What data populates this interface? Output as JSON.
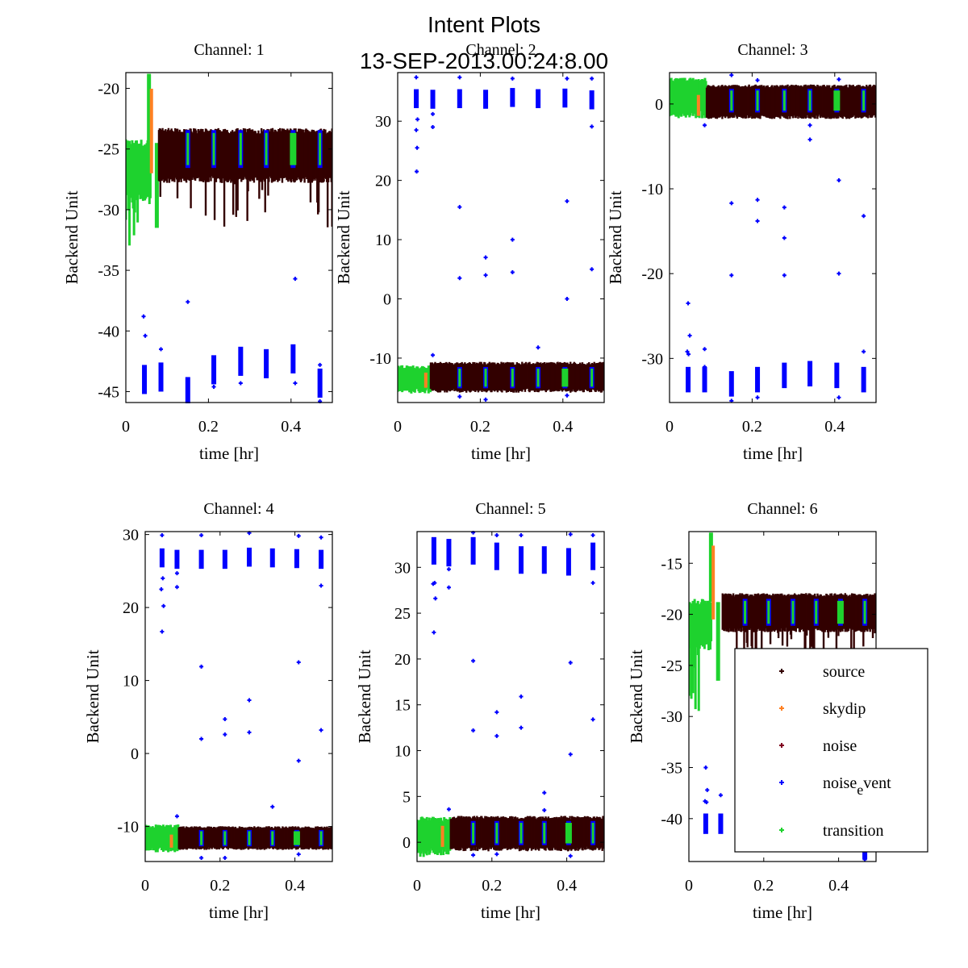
{
  "figure": {
    "title": "Intent Plots",
    "subtitle": "13-SEP-2013.00:24:8.00"
  },
  "chart_data": {
    "type": "scatter",
    "title": "Intent Plots",
    "subtitle": "13-SEP-2013.00:24:8.00",
    "legend": {
      "placement": "bottom-right (inside Channel 6)",
      "entries": [
        {
          "key": "source",
          "label": "source",
          "color": "#330000"
        },
        {
          "key": "skydip",
          "label": "skydip",
          "color": "#ff8022"
        },
        {
          "key": "noise",
          "label": "noise",
          "color": "#800020"
        },
        {
          "key": "noise_event",
          "label": "noise",
          "sub": "e",
          "sup": "vent",
          "color": "#0000ff"
        },
        {
          "key": "transition",
          "label": "transition",
          "color": "#1ed22e"
        }
      ]
    },
    "grid": false,
    "event_times_hr": [
      0.045,
      0.085,
      0.15,
      0.213,
      0.278,
      0.34,
      0.405,
      0.47
    ],
    "panels": [
      {
        "title": "Channel: 1",
        "xlabel": "time [hr]",
        "ylabel": "Backend Unit",
        "xlim": [
          0,
          0.5
        ],
        "ylim": [
          -45.9,
          -18.7
        ],
        "xticks": [
          0,
          0.2,
          0.4
        ],
        "xtick_labels": [
          "0",
          "0.2",
          "0.4"
        ],
        "yticks": [
          -45,
          -40,
          -35,
          -30,
          -25,
          -20
        ],
        "ytick_labels": [
          "-45",
          "-40",
          "-35",
          "-30",
          "-25",
          "-20"
        ],
        "source_band": {
          "x_range": [
            0.08,
            0.5
          ],
          "upper": -23.6,
          "lower": -27.5,
          "dip_depth": -31.5
        },
        "transition_band": {
          "x_range": [
            0.0,
            0.06
          ],
          "upper": -24.5,
          "lower": -29.0,
          "min": -34.0
        },
        "skydip_peak": {
          "x": 0.062,
          "y_top": -18.8,
          "y_bottom": -27.0
        },
        "noise_event_level": -43.5,
        "noise_event_centers": [
          -44.0,
          -43.8,
          -45.0,
          -43.2,
          -42.5,
          -42.7,
          -42.3,
          -44.3
        ],
        "noise_event_spread": 1.2,
        "event_in_source_level": -25.0,
        "outliers": [
          [
            0.043,
            -38.8
          ],
          [
            0.047,
            -40.4
          ],
          [
            0.085,
            -41.5
          ],
          [
            0.15,
            -37.6
          ],
          [
            0.41,
            -35.7
          ],
          [
            0.213,
            -44.6
          ],
          [
            0.278,
            -44.3
          ],
          [
            0.41,
            -44.3
          ],
          [
            0.47,
            -42.8
          ],
          [
            0.15,
            -46.0
          ],
          [
            0.47,
            -45.8
          ]
        ]
      },
      {
        "title": "Channel: 2",
        "xlabel": "time [hr]",
        "ylabel": "Backend Unit",
        "xlim": [
          0,
          0.5
        ],
        "ylim": [
          -17.5,
          38.2
        ],
        "xticks": [
          0,
          0.2,
          0.4
        ],
        "xtick_labels": [
          "0",
          "0.2",
          "0.4"
        ],
        "yticks": [
          -10,
          0,
          10,
          20,
          30
        ],
        "ytick_labels": [
          "-10",
          "0",
          "10",
          "20",
          "30"
        ],
        "source_band": {
          "x_range": [
            0.08,
            0.5
          ],
          "upper": -11.0,
          "lower": -15.5,
          "dip_depth": -15.5
        },
        "transition_band": {
          "x_range": [
            0.0,
            0.08
          ],
          "upper": -11.5,
          "lower": -15.5,
          "min": -15.5
        },
        "skydip_peak": {
          "x": 0.068,
          "y_top": -12.0,
          "y_bottom": -15.0
        },
        "noise_event_level": 33.8,
        "noise_event_centers": [
          33.8,
          33.7,
          33.8,
          33.7,
          34.0,
          33.8,
          33.9,
          33.6
        ],
        "noise_event_spread": 1.6,
        "event_in_source_level": -13.3,
        "outliers": [
          [
            0.046,
            21.5
          ],
          [
            0.047,
            25.5
          ],
          [
            0.045,
            28.5
          ],
          [
            0.048,
            30.3
          ],
          [
            0.085,
            29.0
          ],
          [
            0.085,
            31.2
          ],
          [
            0.15,
            15.5
          ],
          [
            0.213,
            7.0
          ],
          [
            0.213,
            4.0
          ],
          [
            0.15,
            3.5
          ],
          [
            0.278,
            10.0
          ],
          [
            0.278,
            4.5
          ],
          [
            0.41,
            16.5
          ],
          [
            0.41,
            0.0
          ],
          [
            0.34,
            -8.2
          ],
          [
            0.47,
            5.0
          ],
          [
            0.47,
            29.1
          ],
          [
            0.085,
            -9.5
          ],
          [
            0.15,
            -16.5
          ],
          [
            0.213,
            -17.0
          ],
          [
            0.41,
            -16.3
          ],
          [
            0.045,
            37.4
          ],
          [
            0.15,
            37.4
          ],
          [
            0.278,
            37.2
          ],
          [
            0.41,
            37.2
          ],
          [
            0.47,
            37.2
          ]
        ]
      },
      {
        "title": "Channel: 3",
        "xlabel": "time [hr]",
        "ylabel": "Backend Unit",
        "xlim": [
          0,
          0.5
        ],
        "ylim": [
          -35.2,
          3.7
        ],
        "xticks": [
          0,
          0.2,
          0.4
        ],
        "xtick_labels": [
          "0",
          "0.2",
          "0.4"
        ],
        "yticks": [
          -30,
          -20,
          -10,
          0
        ],
        "ytick_labels": [
          "-30",
          "-20",
          "-10",
          "0"
        ],
        "source_band": {
          "x_range": [
            0.09,
            0.5
          ],
          "upper": 2.0,
          "lower": -1.5,
          "dip_depth": -1.8
        },
        "transition_band": {
          "x_range": [
            0.0,
            0.09
          ],
          "upper": 2.8,
          "lower": -1.2,
          "min": -1.5
        },
        "skydip_peak": {
          "x": 0.07,
          "y_top": 1.5,
          "y_bottom": -1.4
        },
        "noise_event_level": -32.5,
        "noise_event_centers": [
          -32.5,
          -32.5,
          -33.0,
          -32.5,
          -32.0,
          -31.8,
          -32.0,
          -32.5
        ],
        "noise_event_spread": 1.5,
        "event_in_source_level": 0.4,
        "outliers": [
          [
            0.045,
            -23.5
          ],
          [
            0.049,
            -27.3
          ],
          [
            0.043,
            -29.2
          ],
          [
            0.046,
            -29.5
          ],
          [
            0.085,
            -28.9
          ],
          [
            0.085,
            -31.0
          ],
          [
            0.15,
            -11.7
          ],
          [
            0.213,
            -11.3
          ],
          [
            0.213,
            -13.8
          ],
          [
            0.278,
            -12.2
          ],
          [
            0.278,
            -15.8
          ],
          [
            0.278,
            -20.2
          ],
          [
            0.15,
            -20.2
          ],
          [
            0.34,
            -2.5
          ],
          [
            0.34,
            -4.2
          ],
          [
            0.41,
            -9.0
          ],
          [
            0.47,
            -13.2
          ],
          [
            0.41,
            -20.0
          ],
          [
            0.47,
            -29.2
          ],
          [
            0.085,
            -2.5
          ],
          [
            0.15,
            3.4
          ],
          [
            0.213,
            2.8
          ],
          [
            0.41,
            2.9
          ],
          [
            0.15,
            -35.0
          ],
          [
            0.213,
            -34.6
          ],
          [
            0.41,
            -34.6
          ]
        ]
      },
      {
        "title": "Channel: 4",
        "xlabel": "time [hr]",
        "ylabel": "Backend Unit",
        "xlim": [
          0,
          0.5
        ],
        "ylim": [
          -14.8,
          30.4
        ],
        "xticks": [
          0,
          0.2,
          0.4
        ],
        "xtick_labels": [
          "0",
          "0.2",
          "0.4"
        ],
        "yticks": [
          -10,
          0,
          10,
          20,
          30
        ],
        "ytick_labels": [
          "-10",
          "0",
          "10",
          "20",
          "30"
        ],
        "source_band": {
          "x_range": [
            0.09,
            0.5
          ],
          "upper": -10.2,
          "lower": -13.0,
          "dip_depth": -13.2
        },
        "transition_band": {
          "x_range": [
            0.0,
            0.09
          ],
          "upper": -10.0,
          "lower": -13.2,
          "min": -13.3
        },
        "skydip_peak": {
          "x": 0.07,
          "y_top": -10.8,
          "y_bottom": -12.9
        },
        "noise_event_level": 26.8,
        "noise_event_centers": [
          26.8,
          26.6,
          26.6,
          26.6,
          26.9,
          26.8,
          26.7,
          26.6
        ],
        "noise_event_spread": 1.3,
        "event_in_source_level": -11.6,
        "outliers": [
          [
            0.045,
            16.7
          ],
          [
            0.049,
            20.2
          ],
          [
            0.043,
            22.5
          ],
          [
            0.047,
            24.0
          ],
          [
            0.085,
            22.8
          ],
          [
            0.085,
            24.7
          ],
          [
            0.15,
            11.9
          ],
          [
            0.213,
            4.7
          ],
          [
            0.213,
            2.6
          ],
          [
            0.15,
            2.0
          ],
          [
            0.278,
            7.3
          ],
          [
            0.278,
            2.9
          ],
          [
            0.41,
            12.5
          ],
          [
            0.41,
            -1.0
          ],
          [
            0.34,
            -7.3
          ],
          [
            0.47,
            3.2
          ],
          [
            0.47,
            23.0
          ],
          [
            0.085,
            -8.6
          ],
          [
            0.15,
            -14.3
          ],
          [
            0.213,
            -14.3
          ],
          [
            0.41,
            -13.8
          ],
          [
            0.045,
            29.9
          ],
          [
            0.15,
            29.9
          ],
          [
            0.278,
            30.2
          ],
          [
            0.41,
            29.8
          ],
          [
            0.47,
            29.6
          ]
        ]
      },
      {
        "title": "Channel: 5",
        "xlabel": "time [hr]",
        "ylabel": "Backend Unit",
        "xlim": [
          0,
          0.5
        ],
        "ylim": [
          -2.1,
          33.9
        ],
        "xticks": [
          0,
          0.2,
          0.4
        ],
        "xtick_labels": [
          "0",
          "0.2",
          "0.4"
        ],
        "yticks": [
          0,
          5,
          10,
          15,
          20,
          25,
          30
        ],
        "ytick_labels": [
          "0",
          "5",
          "10",
          "15",
          "20",
          "25",
          "30"
        ],
        "source_band": {
          "x_range": [
            0.09,
            0.5
          ],
          "upper": 2.6,
          "lower": -0.7,
          "dip_depth": -1.0
        },
        "transition_band": {
          "x_range": [
            0.0,
            0.09
          ],
          "upper": 2.5,
          "lower": -1.0,
          "min": -1.6
        },
        "skydip_peak": {
          "x": 0.068,
          "y_top": 2.2,
          "y_bottom": -0.5
        },
        "noise_event_level": 31.4,
        "noise_event_centers": [
          31.8,
          31.6,
          31.8,
          31.2,
          30.8,
          30.8,
          30.6,
          31.2
        ],
        "noise_event_spread": 1.5,
        "event_in_source_level": 1.0,
        "outliers": [
          [
            0.045,
            22.9
          ],
          [
            0.049,
            26.6
          ],
          [
            0.043,
            28.2
          ],
          [
            0.047,
            28.3
          ],
          [
            0.085,
            27.8
          ],
          [
            0.085,
            29.8
          ],
          [
            0.15,
            19.8
          ],
          [
            0.213,
            14.2
          ],
          [
            0.213,
            11.6
          ],
          [
            0.15,
            12.2
          ],
          [
            0.278,
            15.9
          ],
          [
            0.278,
            12.5
          ],
          [
            0.41,
            19.6
          ],
          [
            0.41,
            9.6
          ],
          [
            0.34,
            5.4
          ],
          [
            0.34,
            3.5
          ],
          [
            0.47,
            13.4
          ],
          [
            0.47,
            28.3
          ],
          [
            0.085,
            3.6
          ],
          [
            0.15,
            -1.4
          ],
          [
            0.213,
            -1.3
          ],
          [
            0.41,
            -1.5
          ],
          [
            0.15,
            33.8
          ],
          [
            0.213,
            33.5
          ],
          [
            0.278,
            33.5
          ],
          [
            0.41,
            33.6
          ],
          [
            0.47,
            33.5
          ]
        ]
      },
      {
        "title": "Channel: 6",
        "xlabel": "time [hr]",
        "ylabel": "Backend Unit",
        "xlim": [
          0,
          0.5
        ],
        "ylim": [
          -44.2,
          -11.9
        ],
        "xticks": [
          0,
          0.2,
          0.4
        ],
        "xtick_labels": [
          "0",
          "0.2",
          "0.4"
        ],
        "yticks": [
          -40,
          -35,
          -30,
          -25,
          -20,
          -15
        ],
        "ytick_labels": [
          "-40",
          "-35",
          "-30",
          "-25",
          "-20",
          "-15"
        ],
        "source_band": {
          "x_range": [
            0.09,
            0.5
          ],
          "upper": -18.2,
          "lower": -21.5,
          "dip_depth": -25.0
        },
        "transition_band": {
          "x_range": [
            0.0,
            0.06
          ],
          "upper": -18.8,
          "lower": -23.0,
          "min": -30.0
        },
        "skydip_peak": {
          "x": 0.065,
          "y_top": -12.0,
          "y_bottom": -20.5
        },
        "noise_event_level": -40.5,
        "noise_event_centers": [
          -40.5,
          -40.5,
          null,
          null,
          null,
          null,
          null,
          -43.0
        ],
        "noise_event_spread": 1.0,
        "event_in_source_level": -19.8,
        "outliers": [
          [
            0.045,
            -35.0
          ],
          [
            0.049,
            -37.2
          ],
          [
            0.043,
            -38.3
          ],
          [
            0.047,
            -38.4
          ],
          [
            0.085,
            -37.7
          ],
          [
            0.47,
            -44.0
          ]
        ]
      }
    ]
  }
}
